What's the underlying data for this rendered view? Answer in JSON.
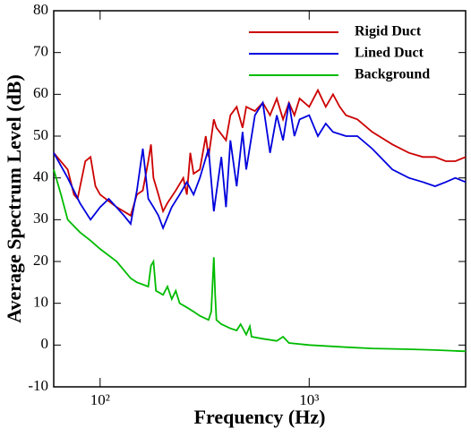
{
  "chart_data": {
    "type": "line",
    "x_label": "Frequency (Hz)",
    "y_label": "Average Spectrum Level (dB)",
    "xscale": "log",
    "xlim": [
      60,
      5600
    ],
    "xticks": [
      {
        "value": 100,
        "label": "10²"
      },
      {
        "value": 1000,
        "label": "10³"
      }
    ],
    "ylim": [
      -10,
      80
    ],
    "yticks": [
      -10,
      0,
      10,
      20,
      30,
      40,
      50,
      60,
      70,
      80
    ],
    "legend": "upper right",
    "series": [
      {
        "name": "Rigid Duct",
        "color": "#cc0000",
        "x": [
          60,
          70,
          75,
          78,
          85,
          90,
          95,
          100,
          120,
          140,
          150,
          160,
          170,
          175,
          180,
          190,
          200,
          210,
          230,
          250,
          260,
          270,
          280,
          300,
          320,
          330,
          350,
          360,
          400,
          420,
          450,
          480,
          500,
          550,
          600,
          650,
          700,
          750,
          800,
          850,
          900,
          1000,
          1100,
          1200,
          1300,
          1400,
          1500,
          1700,
          2000,
          2500,
          3000,
          3500,
          4000,
          4500,
          5000,
          5600
        ],
        "values": [
          46,
          42,
          36,
          35,
          44,
          45,
          38,
          36,
          33,
          31,
          36,
          37,
          44,
          48,
          40,
          36,
          32,
          34,
          37,
          40,
          36,
          46,
          41,
          42,
          50,
          45,
          54,
          52,
          49,
          55,
          57,
          52,
          57,
          56,
          58,
          55,
          59,
          54,
          58,
          55,
          59,
          57,
          61,
          57,
          60,
          57,
          55,
          54,
          51,
          48,
          46,
          45,
          45,
          44,
          44,
          45
        ]
      },
      {
        "name": "Lined Duct",
        "color": "#0000dd",
        "x": [
          60,
          70,
          80,
          90,
          100,
          110,
          130,
          140,
          150,
          160,
          170,
          180,
          190,
          200,
          220,
          240,
          260,
          280,
          300,
          330,
          350,
          380,
          400,
          420,
          450,
          480,
          500,
          550,
          600,
          650,
          700,
          750,
          800,
          850,
          900,
          1000,
          1100,
          1200,
          1300,
          1500,
          1700,
          2000,
          2500,
          3000,
          3500,
          4000,
          4500,
          5000,
          5600
        ],
        "values": [
          46,
          40,
          34,
          30,
          33,
          35,
          31,
          29,
          37,
          47,
          35,
          33,
          31,
          28,
          33,
          36,
          39,
          36,
          40,
          47,
          32,
          45,
          33,
          49,
          38,
          51,
          42,
          55,
          58,
          46,
          55,
          49,
          58,
          50,
          54,
          55,
          50,
          53,
          51,
          50,
          50,
          47,
          42,
          40,
          39,
          38,
          39,
          40,
          39
        ]
      },
      {
        "name": "Background",
        "color": "#00bb00",
        "x": [
          60,
          65,
          70,
          80,
          90,
          100,
          120,
          140,
          150,
          170,
          175,
          180,
          185,
          200,
          210,
          220,
          230,
          240,
          260,
          280,
          300,
          330,
          340,
          350,
          355,
          360,
          380,
          420,
          450,
          470,
          500,
          520,
          530,
          600,
          700,
          750,
          800,
          1000,
          1500,
          2000,
          3000,
          4000,
          5600
        ],
        "values": [
          42,
          36,
          30,
          27,
          25,
          23,
          20,
          16,
          15,
          14,
          19,
          20,
          13,
          12,
          14,
          11,
          13,
          10,
          9,
          8,
          7,
          6,
          8,
          21,
          12,
          6,
          5,
          4,
          3.5,
          5,
          2.5,
          4.5,
          2,
          1.5,
          1,
          2,
          0.5,
          0,
          -0.5,
          -0.8,
          -1,
          -1.2,
          -1.5
        ]
      }
    ]
  }
}
